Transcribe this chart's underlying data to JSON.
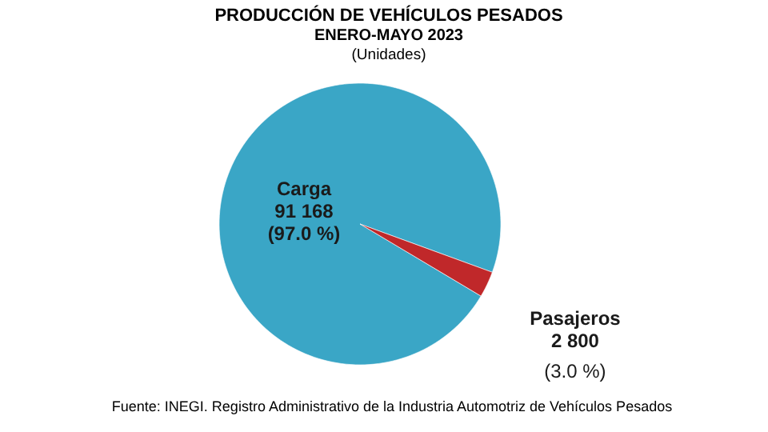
{
  "chart_data": {
    "type": "pie",
    "title": "PRODUCCIÓN DE VEHÍCULOS PESADOS",
    "subtitle": "ENERO-MAYO 2023",
    "categories": [
      "Carga",
      "Pasajeros"
    ],
    "values": [
      91168,
      2800
    ],
    "colors": [
      "#3aa6c6",
      "#c0282a"
    ],
    "value_labels": [
      "91 168\n(97.0 %)",
      "2 800\n(3.0 %)"
    ],
    "annotations": [
      "(Unidades)",
      "Fuente: INEGI. Registro Administrativo de la Industria Automotriz de Vehículos Pesados"
    ]
  }
}
